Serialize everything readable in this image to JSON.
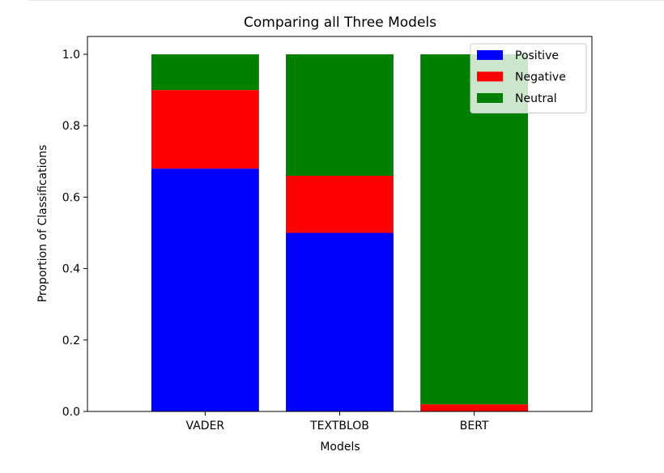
{
  "chart_data": {
    "type": "bar",
    "stacked": true,
    "title": "Comparing all Three Models",
    "xlabel": "Models",
    "ylabel": "Proportion of Classifications",
    "categories": [
      "VADER",
      "TEXTBLOB",
      "BERT"
    ],
    "ylim": [
      0,
      1.05
    ],
    "yticks": [
      0.0,
      0.2,
      0.4,
      0.6,
      0.8,
      1.0
    ],
    "ytick_labels": [
      "0.0",
      "0.2",
      "0.4",
      "0.6",
      "0.8",
      "1.0"
    ],
    "grid": false,
    "legend_position": "top-right",
    "series": [
      {
        "name": "Positive",
        "color": "#0000ff",
        "values": [
          0.68,
          0.5,
          0.0
        ]
      },
      {
        "name": "Negative",
        "color": "#ff0000",
        "values": [
          0.22,
          0.16,
          0.02
        ]
      },
      {
        "name": "Neutral",
        "color": "#008000",
        "values": [
          0.1,
          0.34,
          0.98
        ]
      }
    ]
  }
}
